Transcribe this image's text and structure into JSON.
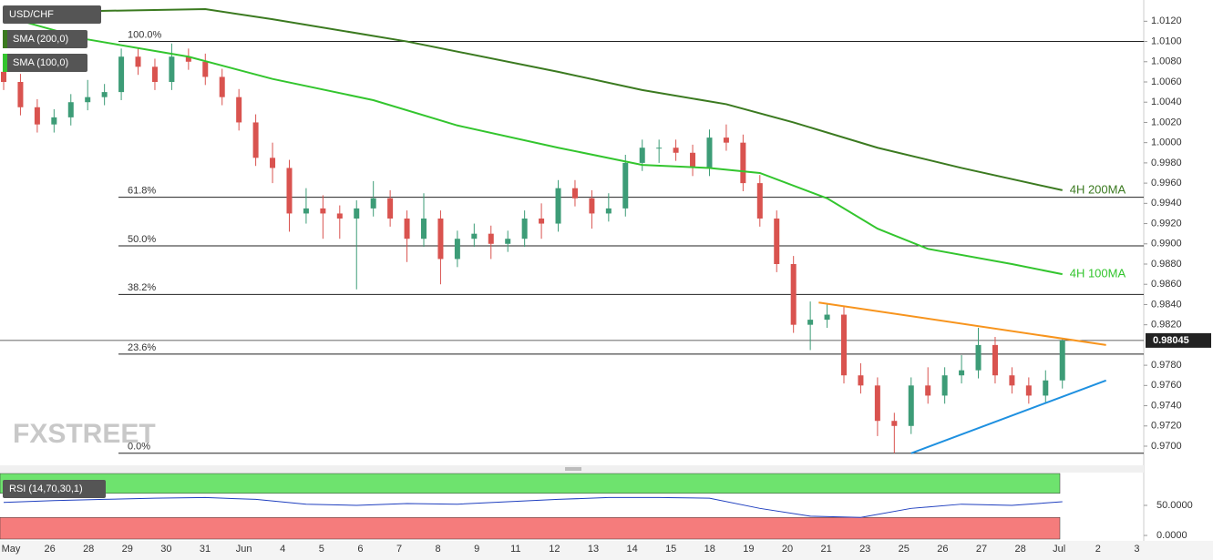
{
  "chart_data": {
    "type": "candlestick",
    "title": "USD/CHF",
    "indicators": [
      "SMA (200,0)",
      "SMA (100,0)"
    ],
    "watermark": "FXSTREET",
    "ylim": [
      0.9682,
      1.0141
    ],
    "yticks": [
      {
        "value": 1.012,
        "label": "1.0120"
      },
      {
        "value": 1.01,
        "label": "1.0100"
      },
      {
        "value": 1.008,
        "label": "1.0080"
      },
      {
        "value": 1.006,
        "label": "1.0060"
      },
      {
        "value": 1.004,
        "label": "1.0040"
      },
      {
        "value": 1.002,
        "label": "1.0020"
      },
      {
        "value": 1.0,
        "label": "1.0000"
      },
      {
        "value": 0.998,
        "label": "0.9980"
      },
      {
        "value": 0.996,
        "label": "0.9960"
      },
      {
        "value": 0.994,
        "label": "0.9940"
      },
      {
        "value": 0.992,
        "label": "0.9920"
      },
      {
        "value": 0.99,
        "label": "0.9900"
      },
      {
        "value": 0.988,
        "label": "0.9880"
      },
      {
        "value": 0.986,
        "label": "0.9860"
      },
      {
        "value": 0.984,
        "label": "0.9840"
      },
      {
        "value": 0.982,
        "label": "0.9820"
      },
      {
        "value": 0.978,
        "label": "0.9780"
      },
      {
        "value": 0.976,
        "label": "0.9760"
      },
      {
        "value": 0.974,
        "label": "0.9740"
      },
      {
        "value": 0.972,
        "label": "0.9720"
      },
      {
        "value": 0.97,
        "label": "0.9700"
      }
    ],
    "xtick_labels": [
      "May",
      "26",
      "28",
      "29",
      "30",
      "31",
      "Jun",
      "4",
      "5",
      "6",
      "7",
      "8",
      "9",
      "11",
      "12",
      "13",
      "14",
      "15",
      "18",
      "19",
      "20",
      "21",
      "23",
      "25",
      "26",
      "27",
      "28",
      "Jul",
      "2",
      "3"
    ],
    "up_color": "#3d9c77",
    "down_color": "#d9534f",
    "open": [
      1.007,
      1.006,
      1.0035,
      1.0018,
      1.0025,
      1.004,
      1.0045,
      1.005,
      1.0085,
      1.0075,
      1.006,
      1.0085,
      1.008,
      1.0065,
      1.0045,
      1.002,
      0.9985,
      0.9975,
      0.993,
      0.9935,
      0.993,
      0.9925,
      0.9935,
      0.9945,
      0.9925,
      0.9905,
      0.9925,
      0.9885,
      0.9905,
      0.991,
      0.99,
      0.9905,
      0.9925,
      0.992,
      0.9955,
      0.9945,
      0.993,
      0.9935,
      0.998,
      0.9995,
      0.9995,
      0.999,
      0.9975,
      1.0005,
      1.0,
      0.996,
      0.9925,
      0.988,
      0.982,
      0.9825,
      0.983,
      0.977,
      0.976,
      0.9725,
      0.972,
      0.976,
      0.975,
      0.977,
      0.9775,
      0.98,
      0.977,
      0.976,
      0.975,
      0.9765
    ],
    "high": [
      1.0078,
      1.0068,
      1.0043,
      1.0033,
      1.0048,
      1.0062,
      1.0058,
      1.0093,
      1.0093,
      1.0083,
      1.0098,
      1.0093,
      1.0088,
      1.0073,
      1.0053,
      1.0028,
      1.0,
      0.9983,
      0.9955,
      0.9948,
      0.9938,
      0.9943,
      0.9962,
      0.9953,
      0.9933,
      0.995,
      0.9933,
      0.9913,
      0.992,
      0.9918,
      0.9913,
      0.9933,
      0.994,
      0.9963,
      0.9963,
      0.9953,
      0.995,
      0.9988,
      1.0003,
      1.0003,
      1.0003,
      0.9998,
      1.0013,
      1.0018,
      1.0008,
      0.9968,
      0.9933,
      0.9888,
      0.9843,
      0.984,
      0.9838,
      0.9782,
      0.9768,
      0.9733,
      0.9768,
      0.9778,
      0.9778,
      0.979,
      0.9817,
      0.9808,
      0.9778,
      0.9768,
      0.9775,
      0.98065
    ],
    "low": [
      1.0052,
      1.0027,
      1.001,
      1.001,
      1.0017,
      1.0032,
      1.0037,
      1.0042,
      1.0067,
      1.0052,
      1.0052,
      1.0072,
      1.0057,
      1.0037,
      1.0012,
      0.9977,
      0.996,
      0.9912,
      0.992,
      0.9905,
      0.9905,
      0.9855,
      0.9927,
      0.9917,
      0.9882,
      0.9897,
      0.986,
      0.9877,
      0.9897,
      0.9885,
      0.9892,
      0.9897,
      0.9905,
      0.9912,
      0.9937,
      0.9915,
      0.9922,
      0.9927,
      0.9972,
      0.998,
      0.9982,
      0.9967,
      0.9967,
      0.9992,
      0.9952,
      0.9917,
      0.9872,
      0.9812,
      0.9795,
      0.9817,
      0.9762,
      0.9752,
      0.971,
      0.9693,
      0.9712,
      0.9742,
      0.9742,
      0.9762,
      0.9767,
      0.9762,
      0.9752,
      0.9742,
      0.9742,
      0.9757
    ],
    "close": [
      1.006,
      1.0035,
      1.0018,
      1.0025,
      1.004,
      1.0045,
      1.005,
      1.0085,
      1.0075,
      1.006,
      1.0085,
      1.008,
      1.0065,
      1.0045,
      1.002,
      0.9985,
      0.9975,
      0.993,
      0.9935,
      0.993,
      0.9925,
      0.9935,
      0.9945,
      0.9925,
      0.9905,
      0.9925,
      0.9885,
      0.9905,
      0.991,
      0.99,
      0.9905,
      0.9925,
      0.992,
      0.9955,
      0.9945,
      0.993,
      0.9935,
      0.998,
      0.9995,
      0.9995,
      0.999,
      0.9975,
      1.0005,
      1.0,
      0.996,
      0.9925,
      0.988,
      0.982,
      0.9825,
      0.983,
      0.977,
      0.976,
      0.9725,
      0.972,
      0.976,
      0.975,
      0.977,
      0.9775,
      0.98,
      0.977,
      0.976,
      0.975,
      0.9765,
      0.98045
    ],
    "last_price": {
      "value": 0.98045,
      "label": "0.98045"
    },
    "series": [
      {
        "name": "4H 200MA",
        "color": "#3b7a20",
        "x": [
          0,
          5,
          12,
          16,
          24,
          33,
          38,
          43,
          47,
          52,
          57,
          63
        ],
        "values": [
          1.0125,
          1.013,
          1.0132,
          1.0122,
          1.01,
          1.007,
          1.0052,
          1.0038,
          1.002,
          0.9995,
          0.9975,
          0.9953
        ]
      },
      {
        "name": "4H 100MA",
        "color": "#33c52e",
        "x": [
          0,
          5,
          11,
          16,
          22,
          27,
          33,
          38,
          42,
          45,
          49,
          52,
          55,
          60,
          63
        ],
        "values": [
          1.0125,
          1.0102,
          1.0085,
          1.0063,
          1.0042,
          1.0017,
          0.9995,
          0.9978,
          0.9975,
          0.997,
          0.9945,
          0.9915,
          0.9895,
          0.988,
          0.987
        ]
      }
    ],
    "fib_levels": [
      {
        "value": 1.01,
        "label": "100.0%"
      },
      {
        "value": 0.9946,
        "label": "61.8%"
      },
      {
        "value": 0.9898,
        "label": "50.0%"
      },
      {
        "value": 0.985,
        "label": "38.2%"
      },
      {
        "value": 0.9791,
        "label": "23.6%"
      },
      {
        "value": 0.9693,
        "label": "0.0%"
      }
    ],
    "trendlines": [
      {
        "color": "#f7941d",
        "x": [
          48.5,
          65.6
        ],
        "values": [
          0.9842,
          0.98
        ]
      },
      {
        "color": "#1e90e0",
        "x": [
          54,
          65.6
        ],
        "values": [
          0.9693,
          0.9765
        ]
      }
    ],
    "rsi": {
      "label": "RSI (14,70,30,1)",
      "color": "#1f3fbf",
      "overbought": 70,
      "oversold": 30,
      "ylim": [
        -6,
        103
      ],
      "yticks": [
        {
          "value": 50,
          "label": "50.0000"
        },
        {
          "value": 0,
          "label": "0.0000"
        }
      ],
      "x": [
        0,
        3,
        6,
        9,
        12,
        15,
        18,
        21,
        24,
        27,
        30,
        33,
        36,
        39,
        42,
        45,
        48,
        51,
        54,
        57,
        60,
        63
      ],
      "values": [
        55,
        58,
        60,
        62,
        63,
        60,
        52,
        50,
        53,
        52,
        56,
        60,
        63,
        63,
        62,
        45,
        32,
        30,
        45,
        52,
        50,
        56
      ]
    }
  }
}
